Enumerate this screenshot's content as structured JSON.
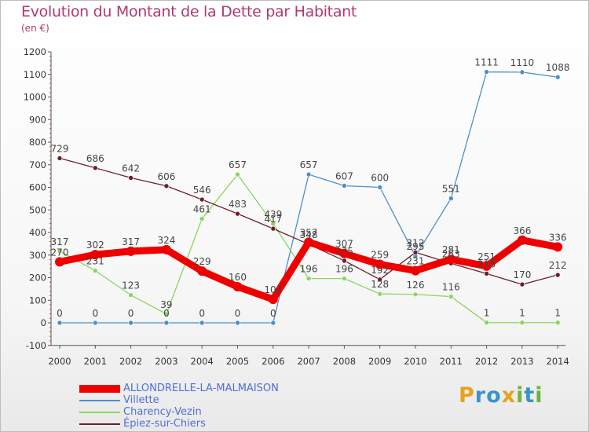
{
  "title": "Evolution du Montant de la Dette par Habitant",
  "unit": "(en €)",
  "logo": {
    "text": "Proxiti",
    "letters": [
      "P",
      "r",
      "o",
      "x",
      "i",
      "t",
      "i"
    ],
    "colors": [
      "#e8a21b",
      "#3a93c9",
      "#3a93c9",
      "#e8a21b",
      "#6cb33f",
      "#3a93c9",
      "#6cb33f"
    ]
  },
  "chart_data": {
    "type": "line",
    "title": "Evolution du Montant de la Dette par Habitant",
    "ylabel": "(en €)",
    "xlabel": "",
    "x": [
      "2000",
      "2001",
      "2002",
      "2003",
      "2004",
      "2005",
      "2006",
      "2007",
      "2008",
      "2009",
      "2010",
      "2011",
      "2012",
      "2013",
      "2014"
    ],
    "ylim": [
      -100,
      1200
    ],
    "yticks": [
      "-100",
      "0",
      "100",
      "200",
      "300",
      "400",
      "500",
      "600",
      "700",
      "800",
      "900",
      "1000",
      "1100",
      "1200"
    ],
    "grid": false,
    "legend_position": "bottom-left",
    "series": [
      {
        "name": "Villette",
        "color": "#4f8fc8",
        "values": [
          0,
          0,
          0,
          0,
          0,
          0,
          0,
          657,
          607,
          600,
          295,
          551,
          1111,
          1110,
          1088
        ],
        "labels": [
          "0",
          "0",
          "0",
          "0",
          "0",
          "0",
          "0",
          "657",
          "607",
          "600",
          "295",
          "551",
          "1111",
          "1110",
          "1088"
        ]
      },
      {
        "name": "Charency-Vezin",
        "color": "#8dd35f",
        "values": [
          317,
          231,
          123,
          39,
          461,
          657,
          439,
          196,
          196,
          128,
          126,
          116,
          1,
          1,
          1
        ],
        "labels": [
          "317",
          "231",
          "123",
          "39",
          "461",
          "657",
          "439",
          "196",
          "196",
          "128",
          "126",
          "116",
          "1",
          "1",
          "1"
        ]
      },
      {
        "name": "Épiez-sur-Chiers",
        "color": "#6b1f2a",
        "values": [
          729,
          686,
          642,
          606,
          546,
          483,
          417,
          348,
          275,
          192,
          312,
          263,
          218,
          170,
          212
        ],
        "labels": [
          "729",
          "686",
          "642",
          "606",
          "546",
          "483",
          "417",
          "348",
          "275",
          "192",
          "312",
          "263",
          "218",
          "170",
          "212"
        ]
      },
      {
        "name": "ALLONDRELLE-LA-MALMAISON",
        "color": "#ee0000",
        "values": [
          270,
          302,
          317,
          324,
          229,
          160,
          104,
          357,
          307,
          259,
          231,
          281,
          251,
          366,
          336
        ],
        "labels": [
          "270",
          "302",
          "317",
          "324",
          "229",
          "160",
          "104",
          "357",
          "307",
          "259",
          "231",
          "281",
          "251",
          "366",
          "336"
        ]
      }
    ]
  },
  "legend": [
    {
      "name": "ALLONDRELLE-LA-MALMAISON",
      "color": "#ee0000",
      "text_color": "#4f6fd6"
    },
    {
      "name": "Villette",
      "color": "#4f8fc8",
      "text_color": "#4f6fd6"
    },
    {
      "name": "Charency-Vezin",
      "color": "#8dd35f",
      "text_color": "#4f6fd6"
    },
    {
      "name": "Épiez-sur-Chiers",
      "color": "#6b1f2a",
      "text_color": "#4f6fd6"
    }
  ]
}
